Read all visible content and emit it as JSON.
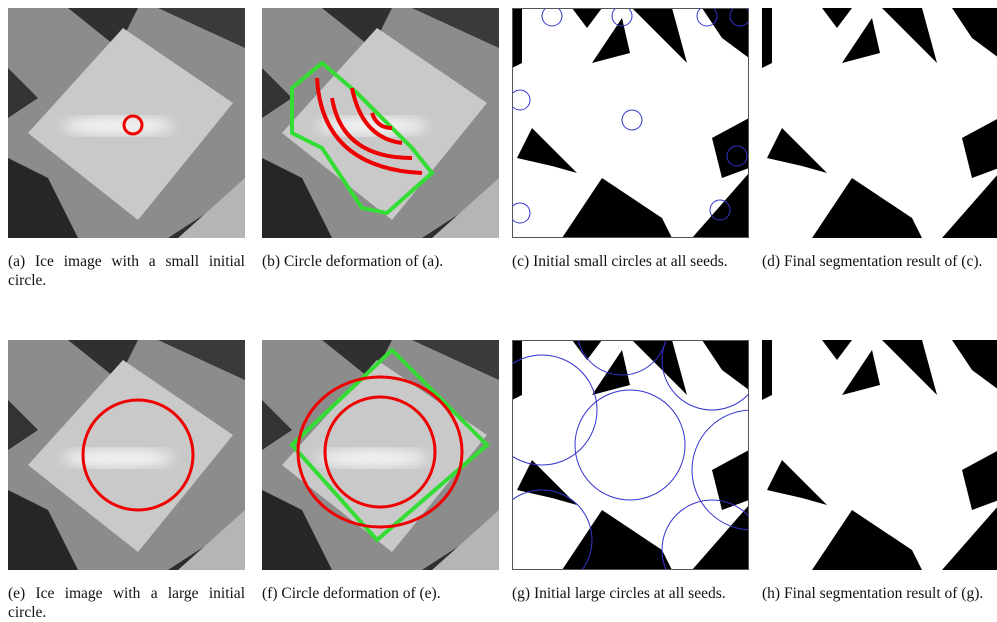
{
  "panels": [
    {
      "caption": "(a) Ice image with a small initial circle."
    },
    {
      "caption": "(b) Circle deformation of (a)."
    },
    {
      "caption": "(c) Initial small circles at all seeds."
    },
    {
      "caption": "(d) Final segmentation result of (c)."
    },
    {
      "caption": "(e) Ice image with a large initial circle."
    },
    {
      "caption": "(f) Circle deformation of (e)."
    },
    {
      "caption": "(g) Initial large circles at all seeds."
    },
    {
      "caption": "(h) Final segmentation result of (g)."
    }
  ]
}
